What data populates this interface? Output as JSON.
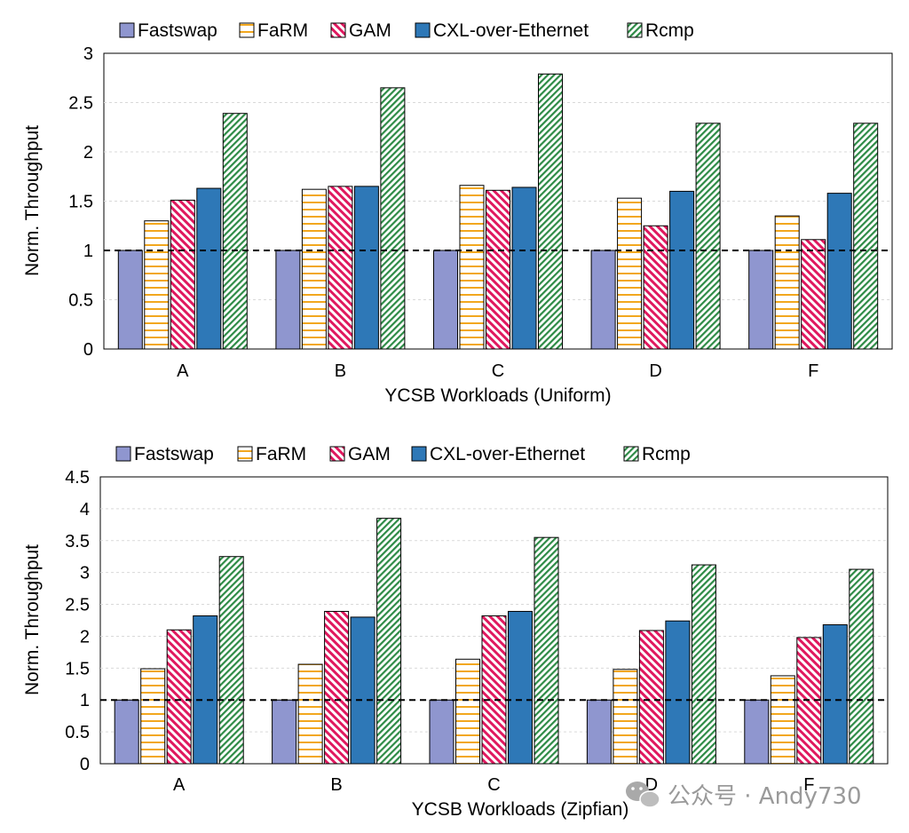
{
  "watermark": {
    "text": "公众号 · Andy730",
    "icon": "wechat-icon"
  },
  "colors": {
    "Fastswap": "#8f96cf",
    "FaRM": "#f2a71e",
    "GAM": "#e0195f",
    "CXL-over-Ethernet": "#2e78b7",
    "Rcmp": "#2e8b46"
  },
  "chart_data": [
    {
      "type": "bar",
      "title": "",
      "xlabel": "YCSB Workloads (Uniform)",
      "ylabel": "Norm. Throughput",
      "ylim": [
        0,
        3
      ],
      "yticks": [
        "0",
        "0.5",
        "1",
        "1.5",
        "2",
        "2.5",
        "3"
      ],
      "grid": true,
      "legend": "top",
      "reference_line": 1,
      "categories": [
        "A",
        "B",
        "C",
        "D",
        "F"
      ],
      "series": [
        {
          "name": "Fastswap",
          "values": [
            1.0,
            1.0,
            1.0,
            1.0,
            1.0
          ]
        },
        {
          "name": "FaRM",
          "values": [
            1.3,
            1.62,
            1.66,
            1.53,
            1.35
          ]
        },
        {
          "name": "GAM",
          "values": [
            1.51,
            1.65,
            1.61,
            1.25,
            1.11
          ]
        },
        {
          "name": "CXL-over-Ethernet",
          "values": [
            1.63,
            1.65,
            1.64,
            1.6,
            1.58
          ]
        },
        {
          "name": "Rcmp",
          "values": [
            2.39,
            2.65,
            2.79,
            2.29,
            2.29
          ]
        }
      ]
    },
    {
      "type": "bar",
      "title": "",
      "xlabel": "YCSB Workloads (Zipfian)",
      "ylabel": "Norm. Throughput",
      "ylim": [
        0,
        4.5
      ],
      "yticks": [
        "0",
        "0.5",
        "1",
        "1.5",
        "2",
        "2.5",
        "3",
        "3.5",
        "4",
        "4.5"
      ],
      "grid": true,
      "legend": "top",
      "reference_line": 1,
      "categories": [
        "A",
        "B",
        "C",
        "D",
        "F"
      ],
      "series": [
        {
          "name": "Fastswap",
          "values": [
            1.0,
            1.0,
            1.0,
            1.0,
            1.0
          ]
        },
        {
          "name": "FaRM",
          "values": [
            1.49,
            1.56,
            1.64,
            1.48,
            1.38
          ]
        },
        {
          "name": "GAM",
          "values": [
            2.1,
            2.39,
            2.32,
            2.09,
            1.98
          ]
        },
        {
          "name": "CXL-over-Ethernet",
          "values": [
            2.32,
            2.3,
            2.39,
            2.24,
            2.18
          ]
        },
        {
          "name": "Rcmp",
          "values": [
            3.25,
            3.85,
            3.55,
            3.12,
            3.05
          ]
        }
      ]
    }
  ]
}
